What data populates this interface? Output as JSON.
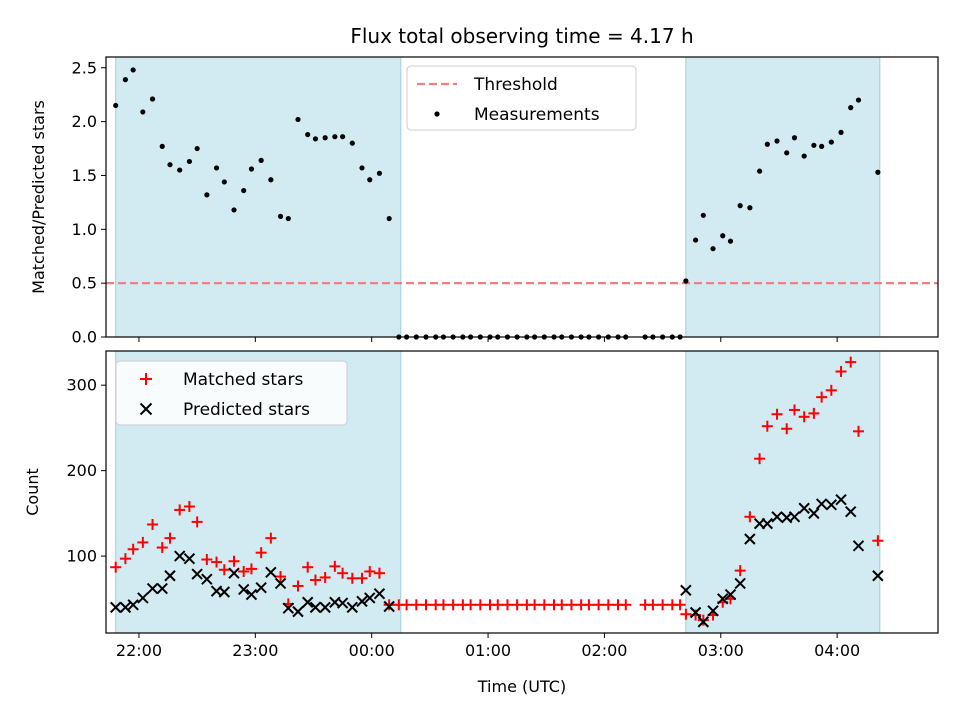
{
  "chart_data": [
    {
      "type": "scatter",
      "title": "Flux total observing time = 4.17 h",
      "xlabel": "",
      "ylabel": "Matched/Predicted stars",
      "xlim": [
        "21:43",
        "04:52"
      ],
      "ylim": [
        0,
        2.6
      ],
      "yticks": [
        0.0,
        0.5,
        1.0,
        1.5,
        2.0,
        2.5
      ],
      "xticks": [
        "22:00",
        "23:00",
        "00:00",
        "01:00",
        "02:00",
        "03:00",
        "04:00"
      ],
      "show_xtick_labels": false,
      "shaded_spans": [
        [
          "21:48",
          "00:15"
        ],
        [
          "02:42",
          "04:22"
        ]
      ],
      "shade_color": "#add8e6",
      "threshold": {
        "name": "Threshold",
        "value": 0.5,
        "color": "#f08080"
      },
      "legend": {
        "placement": "top-center",
        "entries": [
          "Threshold",
          "Measurements"
        ]
      },
      "series": [
        {
          "name": "Measurements",
          "color": "#000000",
          "marker": "dot",
          "points": [
            [
              "21:48",
              2.15
            ],
            [
              "21:53",
              2.39
            ],
            [
              "21:57",
              2.48
            ],
            [
              "22:02",
              2.09
            ],
            [
              "22:07",
              2.21
            ],
            [
              "22:12",
              1.77
            ],
            [
              "22:16",
              1.6
            ],
            [
              "22:21",
              1.55
            ],
            [
              "22:26",
              1.63
            ],
            [
              "22:30",
              1.75
            ],
            [
              "22:35",
              1.32
            ],
            [
              "22:40",
              1.57
            ],
            [
              "22:44",
              1.44
            ],
            [
              "22:49",
              1.18
            ],
            [
              "22:54",
              1.36
            ],
            [
              "22:58",
              1.56
            ],
            [
              "23:03",
              1.64
            ],
            [
              "23:08",
              1.46
            ],
            [
              "23:13",
              1.12
            ],
            [
              "23:17",
              1.1
            ],
            [
              "23:22",
              2.02
            ],
            [
              "23:27",
              1.88
            ],
            [
              "23:31",
              1.84
            ],
            [
              "23:36",
              1.85
            ],
            [
              "23:41",
              1.86
            ],
            [
              "23:45",
              1.86
            ],
            [
              "23:50",
              1.8
            ],
            [
              "23:55",
              1.57
            ],
            [
              "23:59",
              1.46
            ],
            [
              "00:04",
              1.52
            ],
            [
              "00:09",
              1.1
            ],
            [
              "00:14",
              0.0
            ],
            [
              "00:18",
              0.0
            ],
            [
              "00:23",
              0.0
            ],
            [
              "00:28",
              0.0
            ],
            [
              "00:33",
              0.0
            ],
            [
              "00:37",
              0.0
            ],
            [
              "00:42",
              0.0
            ],
            [
              "00:47",
              0.0
            ],
            [
              "00:51",
              0.0
            ],
            [
              "00:56",
              0.0
            ],
            [
              "01:01",
              0.0
            ],
            [
              "01:05",
              0.0
            ],
            [
              "01:10",
              0.0
            ],
            [
              "01:15",
              0.0
            ],
            [
              "01:20",
              0.0
            ],
            [
              "01:24",
              0.0
            ],
            [
              "01:29",
              0.0
            ],
            [
              "01:34",
              0.0
            ],
            [
              "01:38",
              0.0
            ],
            [
              "01:43",
              0.0
            ],
            [
              "01:48",
              0.0
            ],
            [
              "01:52",
              0.0
            ],
            [
              "01:57",
              0.0
            ],
            [
              "02:02",
              0.0
            ],
            [
              "02:07",
              0.0
            ],
            [
              "02:11",
              0.0
            ],
            [
              "02:21",
              0.0
            ],
            [
              "02:25",
              0.0
            ],
            [
              "02:30",
              0.0
            ],
            [
              "02:35",
              0.0
            ],
            [
              "02:39",
              0.0
            ],
            [
              "02:42",
              0.52
            ],
            [
              "02:47",
              0.9
            ],
            [
              "02:51",
              1.13
            ],
            [
              "02:56",
              0.82
            ],
            [
              "03:01",
              0.94
            ],
            [
              "03:05",
              0.89
            ],
            [
              "03:10",
              1.22
            ],
            [
              "03:15",
              1.2
            ],
            [
              "03:20",
              1.54
            ],
            [
              "03:24",
              1.79
            ],
            [
              "03:29",
              1.82
            ],
            [
              "03:34",
              1.71
            ],
            [
              "03:38",
              1.85
            ],
            [
              "03:43",
              1.68
            ],
            [
              "03:48",
              1.78
            ],
            [
              "03:52",
              1.77
            ],
            [
              "03:57",
              1.81
            ],
            [
              "04:02",
              1.9
            ],
            [
              "04:07",
              2.13
            ],
            [
              "04:11",
              2.2
            ],
            [
              "04:21",
              1.53
            ]
          ]
        }
      ]
    },
    {
      "type": "scatter",
      "title": "",
      "xlabel": "Time (UTC)",
      "ylabel": "Count",
      "xlim": [
        "21:43",
        "04:52"
      ],
      "ylim": [
        10,
        340
      ],
      "yticks": [
        100,
        200,
        300
      ],
      "xticks": [
        "22:00",
        "23:00",
        "00:00",
        "01:00",
        "02:00",
        "03:00",
        "04:00"
      ],
      "show_xtick_labels": true,
      "shaded_spans": [
        [
          "21:48",
          "00:15"
        ],
        [
          "02:42",
          "04:22"
        ]
      ],
      "shade_color": "#add8e6",
      "legend": {
        "placement": "top-left",
        "entries": [
          "Matched stars",
          "Predicted stars"
        ]
      },
      "series": [
        {
          "name": "Matched stars",
          "color": "#ff0000",
          "marker": "plus",
          "points": [
            [
              "21:48",
              87
            ],
            [
              "21:53",
              97
            ],
            [
              "21:57",
              108
            ],
            [
              "22:02",
              116
            ],
            [
              "22:07",
              137
            ],
            [
              "22:12",
              110
            ],
            [
              "22:16",
              121
            ],
            [
              "22:21",
              154
            ],
            [
              "22:26",
              158
            ],
            [
              "22:30",
              140
            ],
            [
              "22:35",
              96
            ],
            [
              "22:40",
              93
            ],
            [
              "22:44",
              84
            ],
            [
              "22:49",
              94
            ],
            [
              "22:54",
              82
            ],
            [
              "22:58",
              85
            ],
            [
              "23:03",
              104
            ],
            [
              "23:08",
              121
            ],
            [
              "23:13",
              76
            ],
            [
              "23:17",
              44
            ],
            [
              "23:22",
              65
            ],
            [
              "23:27",
              87
            ],
            [
              "23:31",
              72
            ],
            [
              "23:36",
              75
            ],
            [
              "23:41",
              88
            ],
            [
              "23:45",
              80
            ],
            [
              "23:50",
              74
            ],
            [
              "23:55",
              74
            ],
            [
              "23:59",
              82
            ],
            [
              "00:04",
              80
            ],
            [
              "00:09",
              43
            ],
            [
              "00:14",
              43
            ],
            [
              "00:18",
              43
            ],
            [
              "00:23",
              43
            ],
            [
              "00:28",
              43
            ],
            [
              "00:33",
              43
            ],
            [
              "00:37",
              43
            ],
            [
              "00:42",
              43
            ],
            [
              "00:47",
              43
            ],
            [
              "00:51",
              43
            ],
            [
              "00:56",
              43
            ],
            [
              "01:01",
              43
            ],
            [
              "01:05",
              43
            ],
            [
              "01:10",
              43
            ],
            [
              "01:15",
              43
            ],
            [
              "01:20",
              43
            ],
            [
              "01:24",
              43
            ],
            [
              "01:29",
              43
            ],
            [
              "01:34",
              43
            ],
            [
              "01:38",
              43
            ],
            [
              "01:43",
              43
            ],
            [
              "01:48",
              43
            ],
            [
              "01:52",
              43
            ],
            [
              "01:57",
              43
            ],
            [
              "02:02",
              43
            ],
            [
              "02:07",
              43
            ],
            [
              "02:11",
              43
            ],
            [
              "02:21",
              43
            ],
            [
              "02:25",
              43
            ],
            [
              "02:30",
              43
            ],
            [
              "02:35",
              43
            ],
            [
              "02:39",
              43
            ],
            [
              "02:42",
              32
            ],
            [
              "02:47",
              31
            ],
            [
              "02:51",
              25
            ],
            [
              "02:56",
              31
            ],
            [
              "03:01",
              46
            ],
            [
              "03:05",
              50
            ],
            [
              "03:10",
              83
            ],
            [
              "03:15",
              146
            ],
            [
              "03:20",
              214
            ],
            [
              "03:24",
              252
            ],
            [
              "03:29",
              266
            ],
            [
              "03:34",
              249
            ],
            [
              "03:38",
              271
            ],
            [
              "03:43",
              263
            ],
            [
              "03:48",
              267
            ],
            [
              "03:52",
              286
            ],
            [
              "03:57",
              294
            ],
            [
              "04:02",
              316
            ],
            [
              "04:07",
              327
            ],
            [
              "04:11",
              246
            ],
            [
              "04:21",
              118
            ]
          ]
        },
        {
          "name": "Predicted stars",
          "color": "#000000",
          "marker": "x",
          "points": [
            [
              "21:48",
              40
            ],
            [
              "21:53",
              40
            ],
            [
              "21:57",
              43
            ],
            [
              "22:02",
              51
            ],
            [
              "22:07",
              62
            ],
            [
              "22:12",
              62
            ],
            [
              "22:16",
              77
            ],
            [
              "22:21",
              100
            ],
            [
              "22:26",
              97
            ],
            [
              "22:30",
              79
            ],
            [
              "22:35",
              73
            ],
            [
              "22:40",
              59
            ],
            [
              "22:44",
              58
            ],
            [
              "22:49",
              80
            ],
            [
              "22:54",
              61
            ],
            [
              "22:58",
              55
            ],
            [
              "23:03",
              63
            ],
            [
              "23:08",
              81
            ],
            [
              "23:13",
              68
            ],
            [
              "23:17",
              39
            ],
            [
              "23:22",
              35
            ],
            [
              "23:27",
              46
            ],
            [
              "23:31",
              40
            ],
            [
              "23:36",
              40
            ],
            [
              "23:41",
              46
            ],
            [
              "23:45",
              45
            ],
            [
              "23:50",
              40
            ],
            [
              "23:55",
              47
            ],
            [
              "23:59",
              51
            ],
            [
              "00:04",
              56
            ],
            [
              "00:09",
              41
            ],
            [
              "02:42",
              60
            ],
            [
              "02:47",
              34
            ],
            [
              "02:51",
              23
            ],
            [
              "02:56",
              36
            ],
            [
              "03:01",
              50
            ],
            [
              "03:05",
              55
            ],
            [
              "03:10",
              68
            ],
            [
              "03:15",
              120
            ],
            [
              "03:20",
              138
            ],
            [
              "03:24",
              138
            ],
            [
              "03:29",
              146
            ],
            [
              "03:34",
              145
            ],
            [
              "03:38",
              146
            ],
            [
              "03:43",
              156
            ],
            [
              "03:48",
              150
            ],
            [
              "03:52",
              161
            ],
            [
              "03:57",
              160
            ],
            [
              "04:02",
              166
            ],
            [
              "04:07",
              152
            ],
            [
              "04:11",
              112
            ],
            [
              "04:21",
              77
            ]
          ]
        }
      ]
    }
  ]
}
